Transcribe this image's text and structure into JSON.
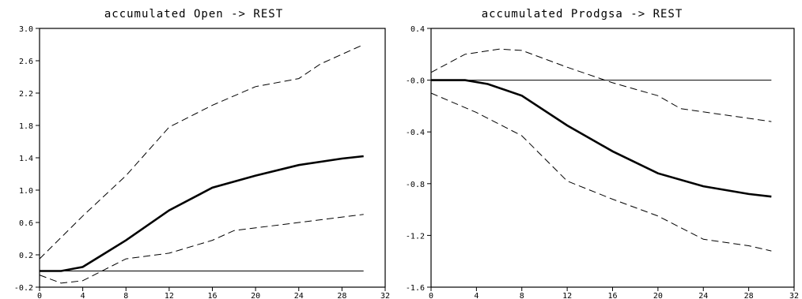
{
  "chart_data": [
    {
      "type": "line",
      "title": "accumulated Open -> REST",
      "xlabel": "",
      "ylabel": "",
      "xlim": [
        0,
        32
      ],
      "ylim": [
        -0.2,
        3.0
      ],
      "xticks": [
        0,
        4,
        8,
        12,
        16,
        20,
        24,
        28,
        32
      ],
      "yticks": [
        -0.2,
        0.2,
        0.6,
        1.0,
        1.4,
        1.8,
        2.2,
        2.6,
        3.0
      ],
      "ytick_labels": [
        "-0.2",
        "0.2",
        "0.6",
        "1.0",
        "1.4",
        "1.8",
        "2.2",
        "2.6",
        "3.0"
      ],
      "grid": false,
      "reference_line": {
        "y": 0.0,
        "x_range": [
          0,
          30
        ]
      },
      "series": [
        {
          "role": "response",
          "style": "solid-thick",
          "x": [
            0,
            2,
            4,
            8,
            12,
            16,
            20,
            24,
            28,
            30
          ],
          "y": [
            0.0,
            0.0,
            0.05,
            0.38,
            0.75,
            1.03,
            1.18,
            1.31,
            1.39,
            1.42
          ]
        },
        {
          "role": "upper-band",
          "style": "dashed",
          "x": [
            0,
            4,
            8,
            12,
            16,
            20,
            24,
            26,
            30
          ],
          "y": [
            0.15,
            0.68,
            1.18,
            1.78,
            2.05,
            2.28,
            2.38,
            2.56,
            2.8
          ]
        },
        {
          "role": "lower-band",
          "style": "dashed",
          "x": [
            0,
            2,
            4,
            8,
            12,
            16,
            18,
            24,
            30
          ],
          "y": [
            -0.05,
            -0.15,
            -0.12,
            0.15,
            0.22,
            0.38,
            0.5,
            0.6,
            0.7
          ]
        }
      ]
    },
    {
      "type": "line",
      "title": "accumulated Prodgsa -> REST",
      "xlabel": "",
      "ylabel": "",
      "xlim": [
        0,
        32
      ],
      "ylim": [
        -1.6,
        0.4
      ],
      "xticks": [
        0,
        4,
        8,
        12,
        16,
        20,
        24,
        28,
        32
      ],
      "yticks": [
        -1.6,
        -1.2,
        -0.8,
        -0.4,
        0.0,
        0.4
      ],
      "ytick_labels": [
        "-1.6",
        "-1.2",
        "-0.8",
        "-0.4",
        "-0.0",
        "0.4"
      ],
      "grid": false,
      "reference_line": {
        "y": 0.0,
        "x_range": [
          0,
          30
        ]
      },
      "series": [
        {
          "role": "response",
          "style": "solid-thick",
          "x": [
            0,
            3,
            5,
            8,
            12,
            16,
            20,
            24,
            28,
            30
          ],
          "y": [
            0.0,
            0.0,
            -0.03,
            -0.12,
            -0.35,
            -0.55,
            -0.72,
            -0.82,
            -0.88,
            -0.9
          ]
        },
        {
          "role": "upper-band",
          "style": "dashed",
          "x": [
            0,
            3,
            6,
            8,
            12,
            16,
            20,
            22,
            26,
            30
          ],
          "y": [
            0.06,
            0.2,
            0.24,
            0.23,
            0.1,
            -0.02,
            -0.12,
            -0.22,
            -0.27,
            -0.32
          ]
        },
        {
          "role": "lower-band",
          "style": "dashed",
          "x": [
            0,
            4,
            8,
            12,
            16,
            20,
            24,
            28,
            30
          ],
          "y": [
            -0.1,
            -0.25,
            -0.43,
            -0.78,
            -0.92,
            -1.05,
            -1.23,
            -1.28,
            -1.32
          ]
        }
      ]
    }
  ]
}
